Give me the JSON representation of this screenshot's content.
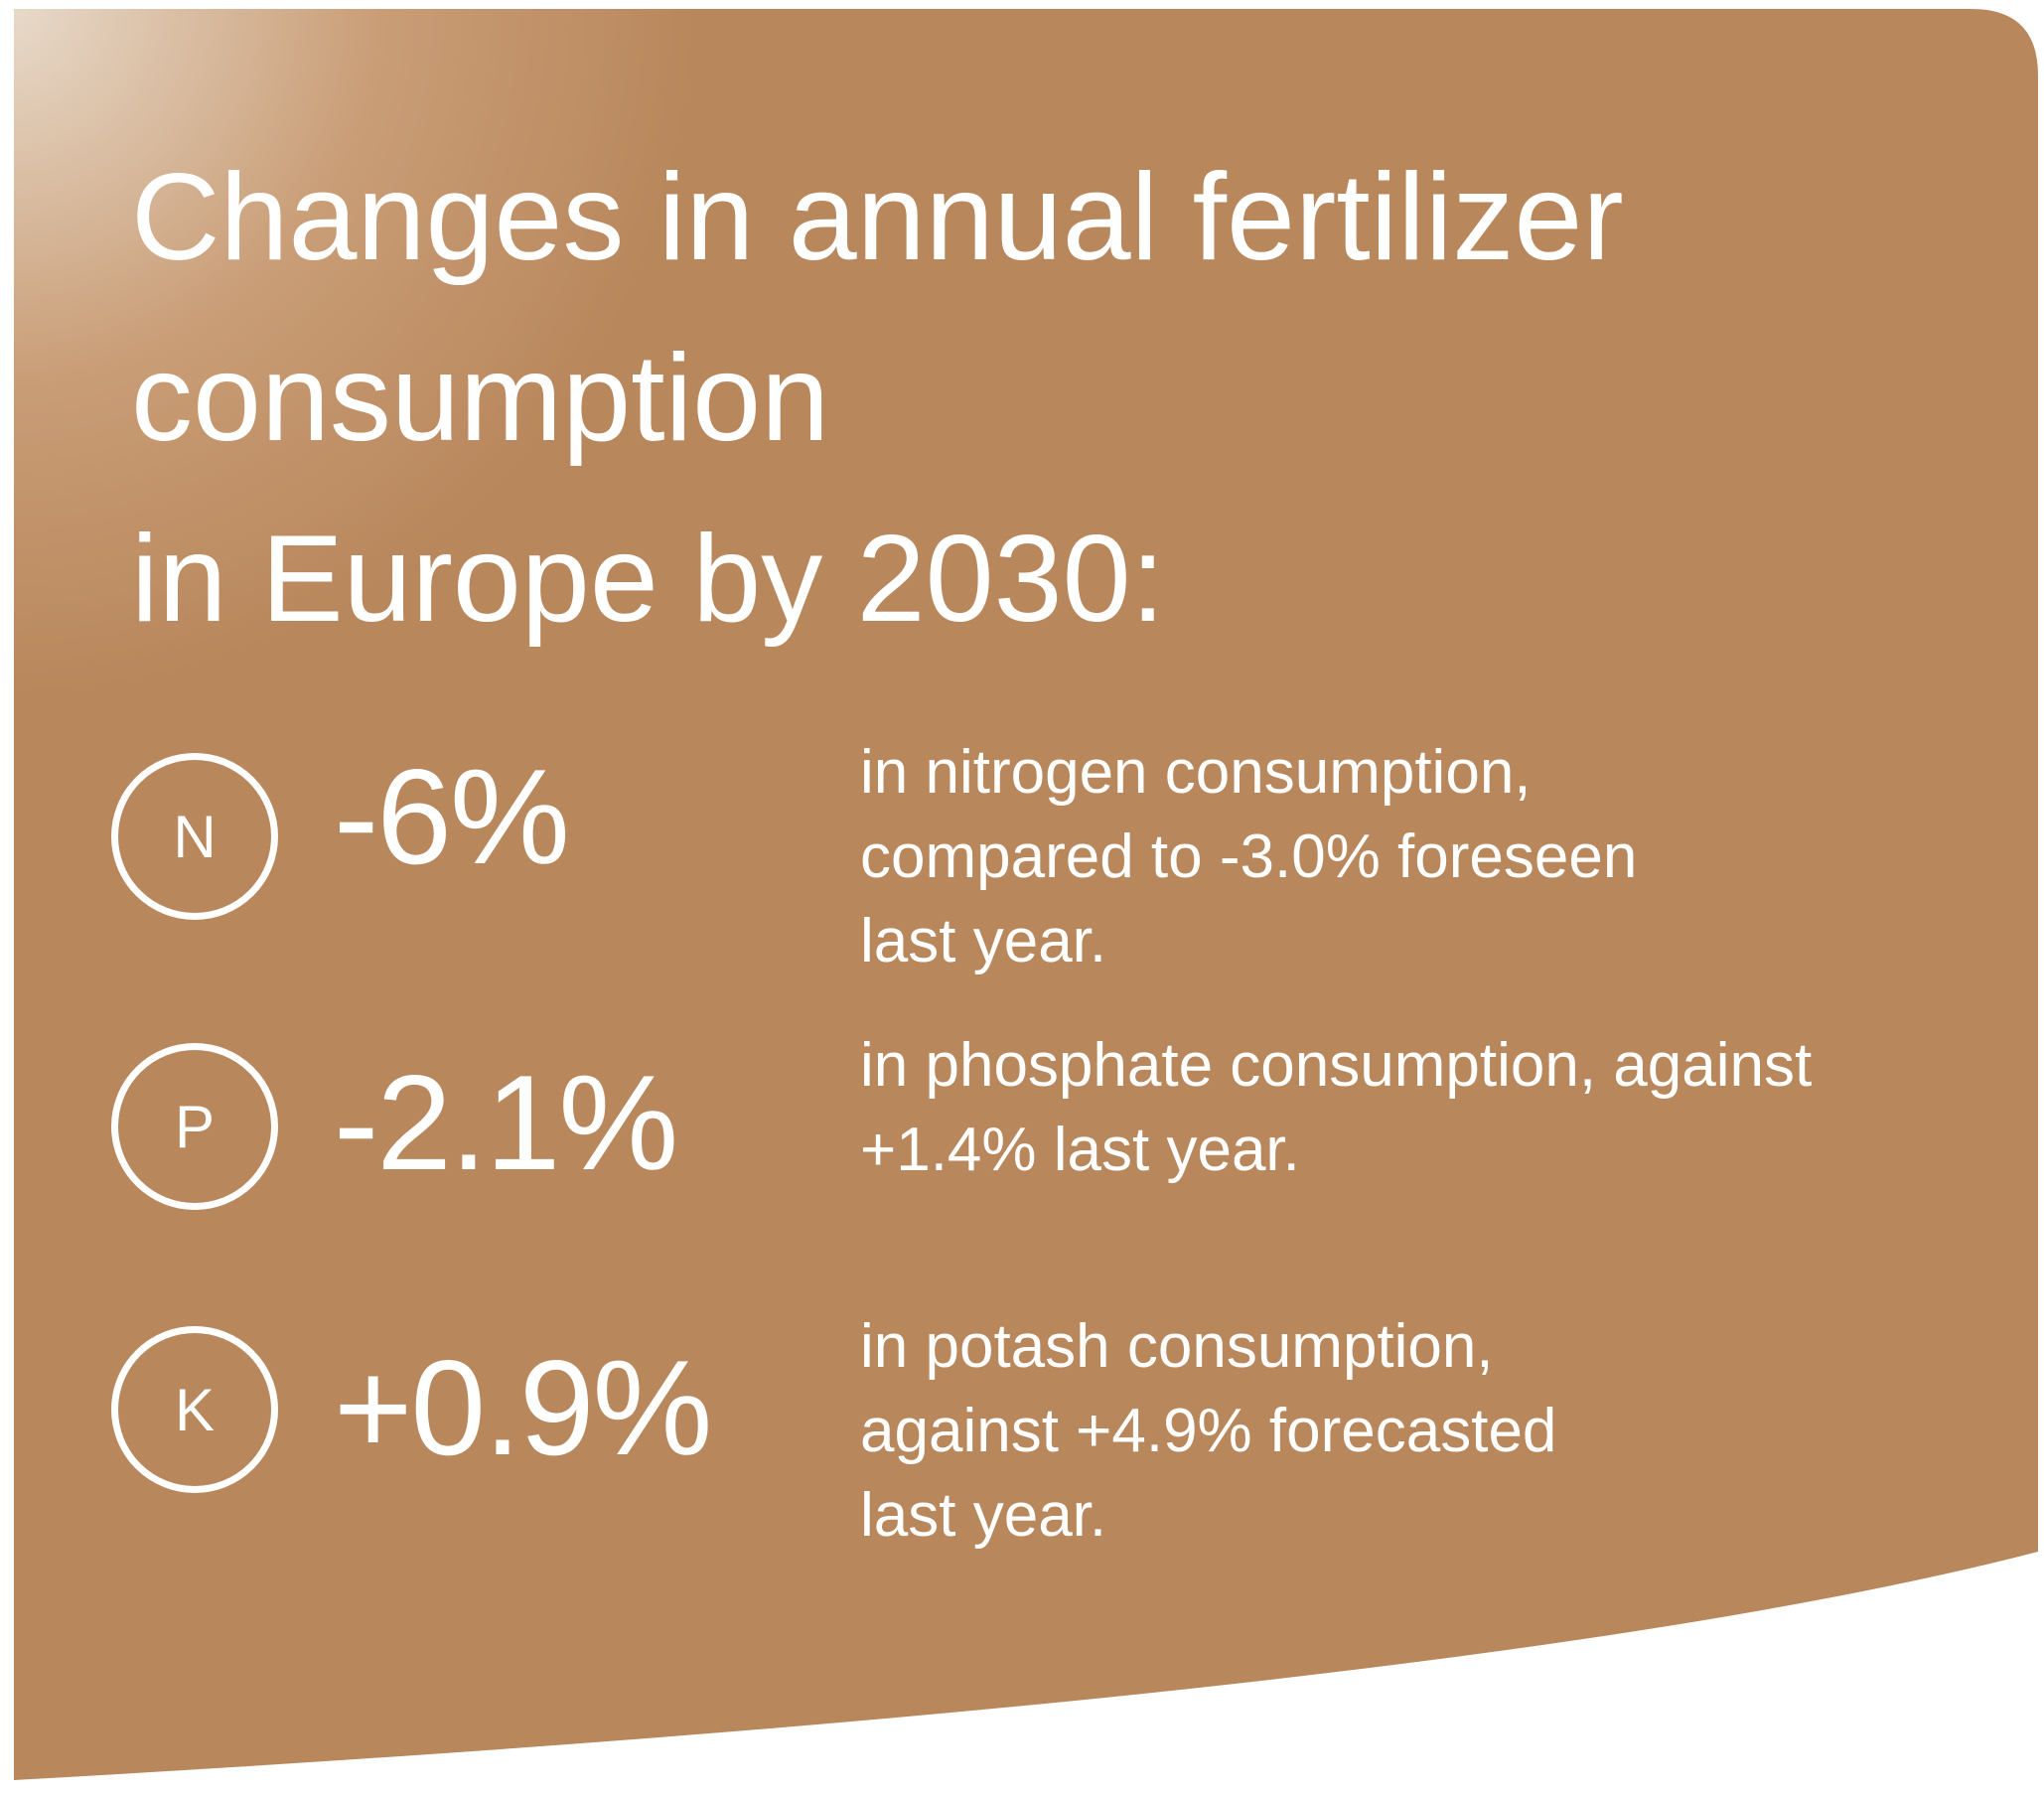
{
  "colors": {
    "panel": "#b9875c",
    "panel_highlight": "#e9dccd",
    "text": "#ffffff"
  },
  "title": {
    "line1": "Changes in annual fertilizer",
    "line2": "consumption",
    "line3": "in Europe by 2030:"
  },
  "items": [
    {
      "symbol": "N",
      "value": "-6%",
      "desc_lines": [
        "in nitrogen consumption,",
        "compared to -3.0% foreseen",
        "last year."
      ]
    },
    {
      "symbol": "P",
      "value": "-2.1%",
      "desc_lines": [
        "in phosphate consumption, against",
        "+1.4% last year."
      ]
    },
    {
      "symbol": "K",
      "value": "+0.9%",
      "desc_lines": [
        "in potash consumption,",
        "against +4.9% forecasted",
        "last year."
      ]
    }
  ]
}
